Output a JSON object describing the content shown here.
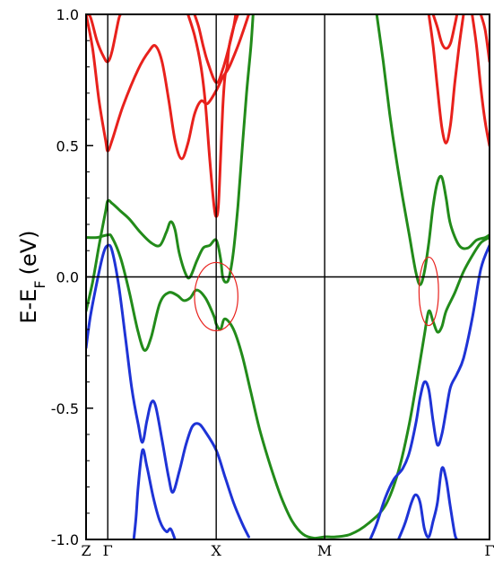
{
  "chart_data": {
    "type": "line",
    "title": "",
    "xlabel": "",
    "ylabel": "E-E",
    "ylabel_subscript": "F",
    "ylabel_unit": "(eV)",
    "ylim": [
      -1.0,
      1.0
    ],
    "yticks": [
      -1.0,
      -0.5,
      0.0,
      0.5,
      1.0
    ],
    "ytick_labels": [
      "-1.0",
      "-0.5",
      "0.0",
      "0.5",
      "1.0"
    ],
    "xlim": [
      0,
      1.86
    ],
    "kpoints": [
      {
        "label": "Z",
        "x": 0.0
      },
      {
        "label": "Γ",
        "x": 0.1
      },
      {
        "label": "X",
        "x": 0.6
      },
      {
        "label": "M",
        "x": 1.1
      },
      {
        "label": "Γ",
        "x": 1.86
      }
    ],
    "fermi_level": 0.0,
    "band_colors": {
      "conduction": "#e8211c",
      "near_fermi": "#228b1a",
      "valence": "#1e33d6"
    },
    "series": [
      {
        "group": "conduction",
        "points": [
          [
            0.0,
            1.0
          ],
          [
            0.02,
            0.99
          ],
          [
            0.05,
            0.9
          ],
          [
            0.08,
            0.84
          ],
          [
            0.1,
            0.82
          ],
          [
            0.12,
            0.86
          ],
          [
            0.15,
            0.98
          ],
          [
            0.16,
            1.0
          ]
        ]
      },
      {
        "group": "conduction",
        "points": [
          [
            0.0,
            1.0
          ],
          [
            0.03,
            0.87
          ],
          [
            0.06,
            0.67
          ],
          [
            0.09,
            0.52
          ],
          [
            0.1,
            0.48
          ],
          [
            0.12,
            0.52
          ],
          [
            0.17,
            0.65
          ],
          [
            0.24,
            0.79
          ],
          [
            0.29,
            0.86
          ],
          [
            0.32,
            0.88
          ],
          [
            0.35,
            0.82
          ],
          [
            0.38,
            0.68
          ],
          [
            0.41,
            0.52
          ],
          [
            0.44,
            0.45
          ],
          [
            0.47,
            0.51
          ],
          [
            0.5,
            0.62
          ],
          [
            0.53,
            0.67
          ],
          [
            0.56,
            0.66
          ],
          [
            0.6,
            0.71
          ],
          [
            0.63,
            0.76
          ],
          [
            0.66,
            0.8
          ],
          [
            0.7,
            0.88
          ],
          [
            0.73,
            0.95
          ],
          [
            0.75,
            1.0
          ]
        ]
      },
      {
        "group": "conduction",
        "points": [
          [
            0.47,
            1.0
          ],
          [
            0.5,
            0.92
          ],
          [
            0.53,
            0.8
          ],
          [
            0.55,
            0.66
          ],
          [
            0.57,
            0.45
          ],
          [
            0.59,
            0.27
          ],
          [
            0.6,
            0.23
          ],
          [
            0.61,
            0.27
          ],
          [
            0.62,
            0.45
          ],
          [
            0.63,
            0.64
          ],
          [
            0.64,
            0.76
          ],
          [
            0.65,
            0.8
          ],
          [
            0.66,
            0.88
          ],
          [
            0.68,
            0.95
          ],
          [
            0.7,
            1.0
          ]
        ]
      },
      {
        "group": "conduction",
        "points": [
          [
            0.5,
            1.0
          ],
          [
            0.52,
            0.95
          ],
          [
            0.54,
            0.88
          ],
          [
            0.56,
            0.82
          ],
          [
            0.6,
            0.74
          ],
          [
            0.63,
            0.79
          ],
          [
            0.66,
            0.88
          ],
          [
            0.68,
            0.95
          ],
          [
            0.69,
            1.0
          ]
        ]
      },
      {
        "group": "conduction",
        "points": [
          [
            1.58,
            1.0
          ],
          [
            1.6,
            0.88
          ],
          [
            1.62,
            0.72
          ],
          [
            1.64,
            0.57
          ],
          [
            1.66,
            0.51
          ],
          [
            1.68,
            0.58
          ],
          [
            1.7,
            0.74
          ],
          [
            1.72,
            0.88
          ],
          [
            1.74,
            1.0
          ]
        ]
      },
      {
        "group": "conduction",
        "points": [
          [
            1.6,
            1.0
          ],
          [
            1.62,
            0.95
          ],
          [
            1.64,
            0.89
          ],
          [
            1.66,
            0.87
          ],
          [
            1.68,
            0.89
          ],
          [
            1.7,
            0.96
          ],
          [
            1.71,
            1.0
          ]
        ]
      },
      {
        "group": "conduction",
        "points": [
          [
            1.78,
            1.0
          ],
          [
            1.8,
            0.88
          ],
          [
            1.82,
            0.72
          ],
          [
            1.84,
            0.59
          ],
          [
            1.86,
            0.5
          ]
        ]
      },
      {
        "group": "conduction",
        "points": [
          [
            1.82,
            1.0
          ],
          [
            1.84,
            0.94
          ],
          [
            1.86,
            0.82
          ]
        ]
      },
      {
        "group": "near_fermi",
        "points": [
          [
            0.0,
            -0.13
          ],
          [
            0.03,
            -0.02
          ],
          [
            0.06,
            0.12
          ],
          [
            0.09,
            0.25
          ],
          [
            0.1,
            0.29
          ],
          [
            0.12,
            0.28
          ],
          [
            0.16,
            0.25
          ],
          [
            0.2,
            0.22
          ],
          [
            0.25,
            0.17
          ],
          [
            0.3,
            0.13
          ],
          [
            0.34,
            0.12
          ],
          [
            0.37,
            0.17
          ],
          [
            0.39,
            0.21
          ],
          [
            0.41,
            0.18
          ],
          [
            0.43,
            0.09
          ],
          [
            0.46,
            0.01
          ],
          [
            0.48,
            0.0
          ],
          [
            0.51,
            0.06
          ],
          [
            0.54,
            0.11
          ],
          [
            0.57,
            0.12
          ],
          [
            0.6,
            0.14
          ],
          [
            0.62,
            0.07
          ],
          [
            0.63,
            0.0
          ],
          [
            0.645,
            -0.02
          ],
          [
            0.66,
            0.0
          ],
          [
            0.68,
            0.1
          ],
          [
            0.7,
            0.27
          ],
          [
            0.72,
            0.49
          ],
          [
            0.74,
            0.7
          ],
          [
            0.76,
            0.88
          ],
          [
            0.77,
            1.0
          ]
        ]
      },
      {
        "group": "near_fermi",
        "points": [
          [
            0.0,
            0.15
          ],
          [
            0.05,
            0.15
          ],
          [
            0.1,
            0.16
          ],
          [
            0.12,
            0.15
          ],
          [
            0.16,
            0.07
          ],
          [
            0.2,
            -0.06
          ],
          [
            0.24,
            -0.21
          ],
          [
            0.27,
            -0.28
          ],
          [
            0.3,
            -0.23
          ],
          [
            0.34,
            -0.1
          ],
          [
            0.38,
            -0.06
          ],
          [
            0.42,
            -0.07
          ],
          [
            0.45,
            -0.09
          ],
          [
            0.48,
            -0.08
          ],
          [
            0.51,
            -0.05
          ],
          [
            0.55,
            -0.08
          ],
          [
            0.59,
            -0.15
          ],
          [
            0.6,
            -0.18
          ],
          [
            0.62,
            -0.2
          ],
          [
            0.64,
            -0.16
          ],
          [
            0.68,
            -0.2
          ],
          [
            0.72,
            -0.3
          ],
          [
            0.76,
            -0.44
          ],
          [
            0.8,
            -0.58
          ],
          [
            0.85,
            -0.72
          ],
          [
            0.9,
            -0.84
          ],
          [
            0.95,
            -0.93
          ],
          [
            1.0,
            -0.98
          ],
          [
            1.05,
            -0.995
          ],
          [
            1.1,
            -0.99
          ],
          [
            1.15,
            -0.99
          ],
          [
            1.22,
            -0.98
          ],
          [
            1.3,
            -0.94
          ],
          [
            1.38,
            -0.87
          ],
          [
            1.44,
            -0.74
          ],
          [
            1.49,
            -0.56
          ],
          [
            1.53,
            -0.37
          ],
          [
            1.56,
            -0.22
          ],
          [
            1.58,
            -0.13
          ],
          [
            1.6,
            -0.17
          ],
          [
            1.62,
            -0.21
          ],
          [
            1.64,
            -0.19
          ],
          [
            1.66,
            -0.13
          ],
          [
            1.7,
            -0.06
          ],
          [
            1.74,
            0.02
          ],
          [
            1.78,
            0.08
          ],
          [
            1.82,
            0.13
          ],
          [
            1.86,
            0.15
          ]
        ]
      },
      {
        "group": "near_fermi",
        "points": [
          [
            1.34,
            1.0
          ],
          [
            1.37,
            0.82
          ],
          [
            1.4,
            0.62
          ],
          [
            1.43,
            0.45
          ],
          [
            1.46,
            0.3
          ],
          [
            1.49,
            0.16
          ],
          [
            1.52,
            0.02
          ],
          [
            1.54,
            -0.03
          ],
          [
            1.56,
            0.02
          ],
          [
            1.58,
            0.13
          ],
          [
            1.6,
            0.27
          ],
          [
            1.62,
            0.36
          ],
          [
            1.64,
            0.38
          ],
          [
            1.66,
            0.3
          ],
          [
            1.68,
            0.2
          ],
          [
            1.72,
            0.12
          ],
          [
            1.76,
            0.11
          ],
          [
            1.8,
            0.14
          ],
          [
            1.84,
            0.15
          ],
          [
            1.86,
            0.16
          ]
        ]
      },
      {
        "group": "valence",
        "points": [
          [
            0.0,
            -0.27
          ],
          [
            0.02,
            -0.15
          ],
          [
            0.05,
            -0.02
          ],
          [
            0.08,
            0.09
          ],
          [
            0.1,
            0.12
          ],
          [
            0.12,
            0.1
          ],
          [
            0.15,
            -0.03
          ],
          [
            0.18,
            -0.22
          ],
          [
            0.21,
            -0.42
          ],
          [
            0.24,
            -0.56
          ],
          [
            0.26,
            -0.63
          ],
          [
            0.28,
            -0.55
          ],
          [
            0.3,
            -0.48
          ],
          [
            0.32,
            -0.49
          ],
          [
            0.35,
            -0.62
          ],
          [
            0.38,
            -0.76
          ],
          [
            0.4,
            -0.82
          ],
          [
            0.43,
            -0.74
          ],
          [
            0.46,
            -0.64
          ],
          [
            0.49,
            -0.57
          ],
          [
            0.52,
            -0.56
          ],
          [
            0.55,
            -0.59
          ],
          [
            0.6,
            -0.66
          ],
          [
            0.64,
            -0.76
          ],
          [
            0.68,
            -0.86
          ],
          [
            0.72,
            -0.94
          ],
          [
            0.75,
            -0.99
          ]
        ]
      },
      {
        "group": "valence",
        "points": [
          [
            0.22,
            -1.0
          ],
          [
            0.23,
            -0.92
          ],
          [
            0.24,
            -0.8
          ],
          [
            0.26,
            -0.66
          ],
          [
            0.28,
            -0.72
          ],
          [
            0.31,
            -0.84
          ],
          [
            0.34,
            -0.93
          ],
          [
            0.37,
            -0.97
          ],
          [
            0.39,
            -0.96
          ],
          [
            0.41,
            -1.0
          ]
        ]
      },
      {
        "group": "valence",
        "points": [
          [
            1.31,
            -1.0
          ],
          [
            1.34,
            -0.94
          ],
          [
            1.38,
            -0.84
          ],
          [
            1.42,
            -0.77
          ],
          [
            1.46,
            -0.73
          ],
          [
            1.49,
            -0.67
          ],
          [
            1.52,
            -0.56
          ],
          [
            1.54,
            -0.46
          ],
          [
            1.56,
            -0.4
          ],
          [
            1.58,
            -0.43
          ],
          [
            1.6,
            -0.55
          ],
          [
            1.62,
            -0.64
          ],
          [
            1.64,
            -0.6
          ],
          [
            1.66,
            -0.51
          ],
          [
            1.68,
            -0.42
          ],
          [
            1.71,
            -0.37
          ],
          [
            1.74,
            -0.31
          ],
          [
            1.78,
            -0.16
          ],
          [
            1.82,
            0.03
          ],
          [
            1.86,
            0.12
          ]
        ]
      },
      {
        "group": "valence",
        "points": [
          [
            1.44,
            -1.0
          ],
          [
            1.47,
            -0.94
          ],
          [
            1.5,
            -0.86
          ],
          [
            1.52,
            -0.83
          ],
          [
            1.54,
            -0.86
          ],
          [
            1.56,
            -0.96
          ],
          [
            1.58,
            -0.99
          ],
          [
            1.6,
            -0.93
          ],
          [
            1.62,
            -0.86
          ],
          [
            1.64,
            -0.73
          ],
          [
            1.66,
            -0.77
          ],
          [
            1.68,
            -0.88
          ],
          [
            1.7,
            -0.98
          ],
          [
            1.71,
            -1.0
          ]
        ]
      }
    ],
    "annotations": [
      {
        "shape": "ellipse",
        "color": "#e8211c",
        "x": 0.6,
        "y": -0.075,
        "rx": 0.1,
        "ry": 0.13
      },
      {
        "shape": "ellipse",
        "color": "#e8211c",
        "x": 1.58,
        "y": -0.055,
        "rx": 0.045,
        "ry": 0.13
      }
    ],
    "grid": false,
    "legend": "none"
  }
}
